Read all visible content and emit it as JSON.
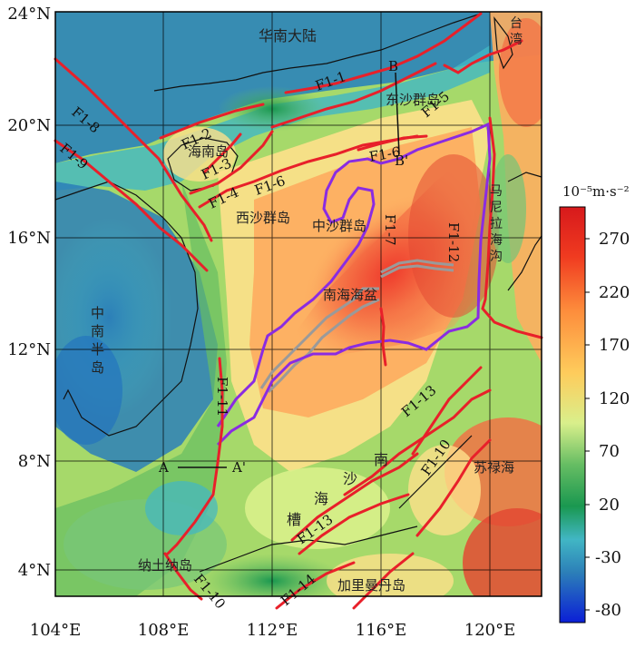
{
  "map": {
    "lat_labels": [
      "24°N",
      "20°N",
      "16°N",
      "12°N",
      "8°N",
      "4°N"
    ],
    "lon_labels": [
      "104°E",
      "108°E",
      "112°E",
      "116°E",
      "120°E"
    ],
    "places": {
      "south_china_mainland": "华南大陆",
      "taiwan": "台湾",
      "hainan_island": "海南岛",
      "dongsha_islands": "东沙群岛",
      "xisha_islands": "西沙群岛",
      "zhongsha_islands": "中沙群岛",
      "indochina_peninsula": "中南半岛",
      "scs_basin": "南海海盆",
      "luzon_trench": "马尼拉海沟",
      "sulu_sea": "苏禄海",
      "natuna_island": "纳土纳岛",
      "kalimantan_island": "加里曼丹岛",
      "nansha_trough": [
        "南",
        "沙",
        "海",
        "槽"
      ]
    },
    "faults": [
      "F1-1",
      "F1-2",
      "F1-3",
      "F1-4",
      "F1-5",
      "F1-6",
      "F1-6",
      "F1-7",
      "F1-8",
      "F1-9",
      "F1-10",
      "F1-10",
      "F1-11",
      "F1-12",
      "F1-13",
      "F1-13",
      "F1-14"
    ],
    "profiles": {
      "bb_start": "B",
      "bb_end": "B'",
      "aa_start": "A",
      "aa_end": "A'"
    }
  },
  "colorbar": {
    "unit": "10⁻⁵m·s⁻²",
    "ticks": [
      "270",
      "220",
      "170",
      "120",
      "70",
      "20",
      "-30",
      "-80"
    ]
  },
  "colors": {
    "fault": "#e8202a",
    "basin_outline": "#8a2be2",
    "spreading_ridge": "#9a9a9a",
    "coastline": "#111111"
  }
}
